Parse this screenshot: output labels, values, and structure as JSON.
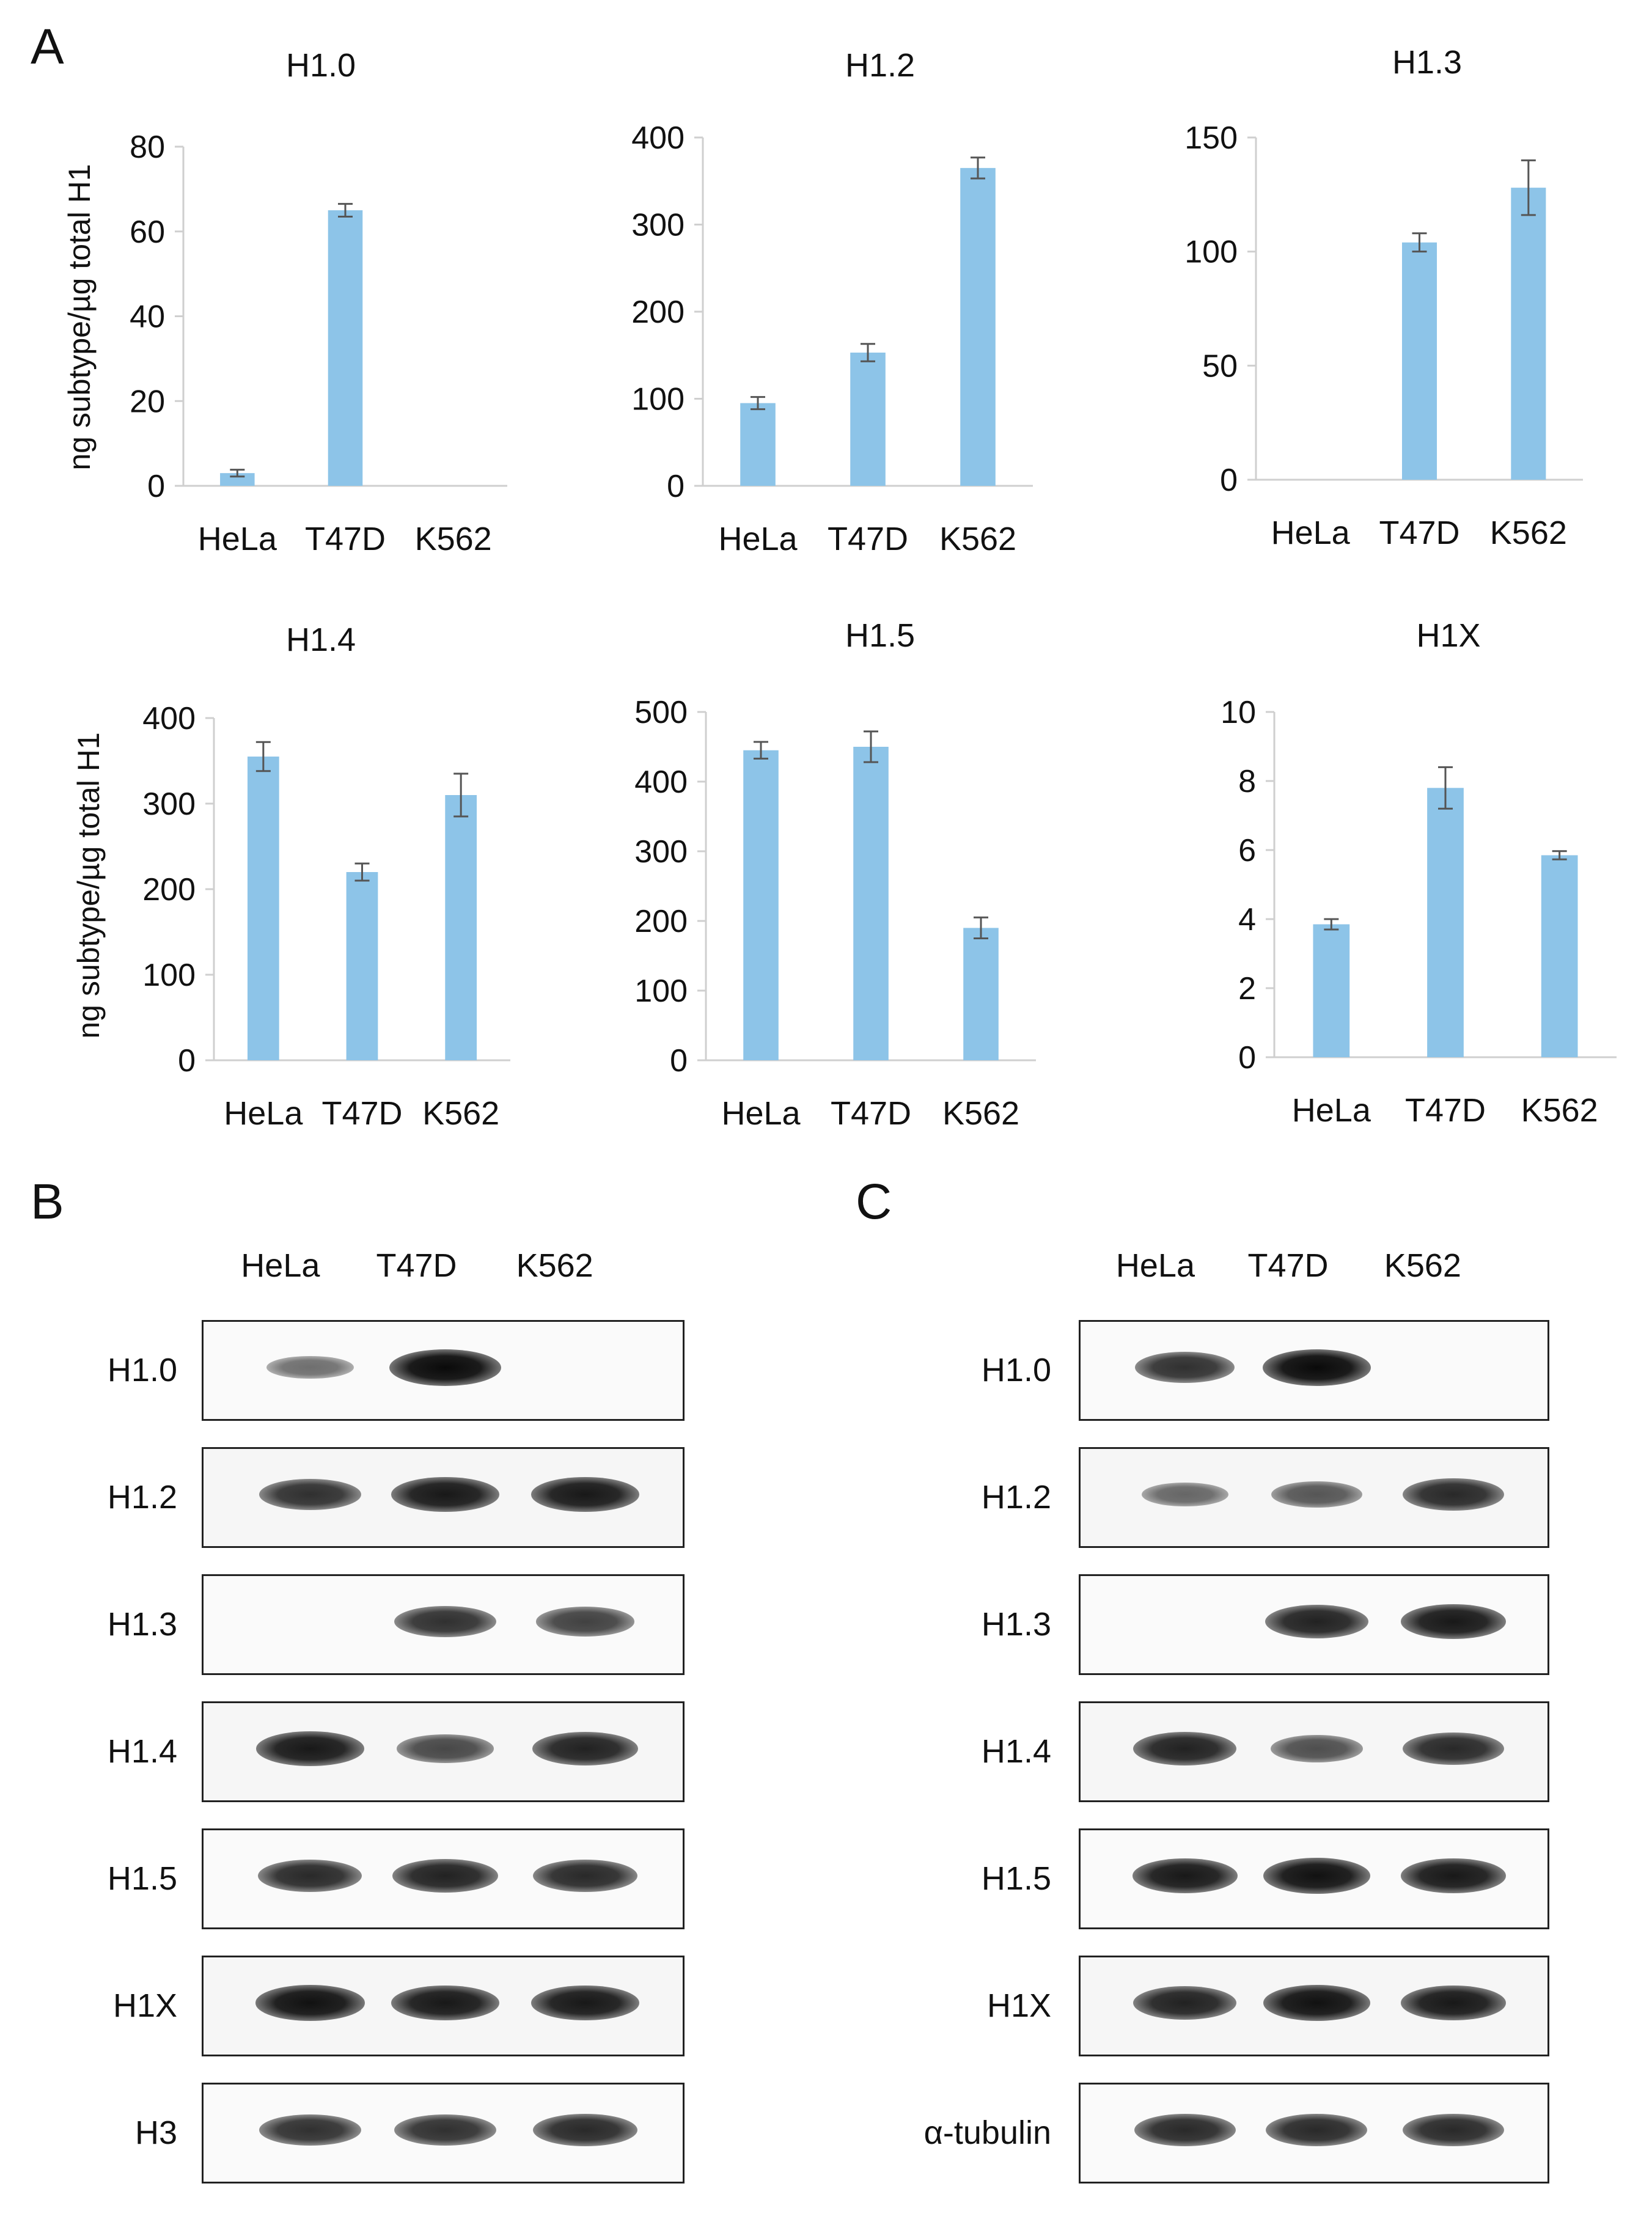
{
  "panels": {
    "a": "A",
    "b": "B",
    "c": "C"
  },
  "y_axis_label": "ng subtype/µg total H1",
  "chart_data": [
    {
      "type": "bar",
      "title": "H1.0",
      "categories": [
        "HeLa",
        "T47D",
        "K562"
      ],
      "values": [
        3,
        65,
        0
      ],
      "errors": [
        0.8,
        1.5,
        0
      ],
      "ylim": [
        0,
        80
      ],
      "yticks": [
        "0",
        "20",
        "40",
        "60",
        "80"
      ],
      "ylabel": "ng subtype/µg total H1",
      "color": "#8DC4E8"
    },
    {
      "type": "bar",
      "title": "H1.2",
      "categories": [
        "HeLa",
        "T47D",
        "K562"
      ],
      "values": [
        95,
        153,
        365
      ],
      "errors": [
        7,
        10,
        12
      ],
      "ylim": [
        0,
        400
      ],
      "yticks": [
        "0",
        "100",
        "200",
        "300",
        "400"
      ],
      "ylabel": "",
      "color": "#8DC4E8"
    },
    {
      "type": "bar",
      "title": "H1.3",
      "categories": [
        "HeLa",
        "T47D",
        "K562"
      ],
      "values": [
        0,
        104,
        128
      ],
      "errors": [
        0,
        4,
        12
      ],
      "ylim": [
        0,
        150
      ],
      "yticks": [
        "0",
        "50",
        "100",
        "150"
      ],
      "ylabel": "",
      "color": "#8DC4E8"
    },
    {
      "type": "bar",
      "title": "H1.4",
      "categories": [
        "HeLa",
        "T47D",
        "K562"
      ],
      "values": [
        355,
        220,
        310
      ],
      "errors": [
        17,
        10,
        25
      ],
      "ylim": [
        0,
        400
      ],
      "yticks": [
        "0",
        "100",
        "200",
        "300",
        "400"
      ],
      "ylabel": "ng subtype/µg total H1",
      "color": "#8DC4E8"
    },
    {
      "type": "bar",
      "title": "H1.5",
      "categories": [
        "HeLa",
        "T47D",
        "K562"
      ],
      "values": [
        445,
        450,
        190
      ],
      "errors": [
        12,
        22,
        15
      ],
      "ylim": [
        0,
        500
      ],
      "yticks": [
        "0",
        "100",
        "200",
        "300",
        "400",
        "500"
      ],
      "ylabel": "",
      "color": "#8DC4E8"
    },
    {
      "type": "bar",
      "title": "H1X",
      "categories": [
        "HeLa",
        "T47D",
        "K562"
      ],
      "values": [
        3.85,
        7.8,
        5.85
      ],
      "errors": [
        0.15,
        0.6,
        0.12
      ],
      "ylim": [
        0,
        10
      ],
      "yticks": [
        "0",
        "2",
        "4",
        "6",
        "8",
        "10"
      ],
      "ylabel": "",
      "color": "#8DC4E8"
    }
  ],
  "blots": [
    {
      "panel": "B",
      "lanes": [
        "HeLa",
        "T47D",
        "K562"
      ],
      "rows": [
        {
          "label": "H1.0",
          "intensity": [
            0.35,
            1.0,
            0
          ]
        },
        {
          "label": "H1.2",
          "intensity": [
            0.75,
            0.9,
            0.9
          ]
        },
        {
          "label": "H1.3",
          "intensity": [
            0,
            0.75,
            0.65
          ]
        },
        {
          "label": "H1.4",
          "intensity": [
            0.9,
            0.6,
            0.85
          ]
        },
        {
          "label": "H1.5",
          "intensity": [
            0.8,
            0.85,
            0.8
          ]
        },
        {
          "label": "H1X",
          "intensity": [
            0.95,
            0.9,
            0.9
          ]
        },
        {
          "label": "H3",
          "intensity": [
            0.75,
            0.75,
            0.8
          ]
        }
      ]
    },
    {
      "panel": "C",
      "lanes": [
        "HeLa",
        "T47D",
        "K562"
      ],
      "rows": [
        {
          "label": "H1.0",
          "intensity": [
            0.75,
            1.0,
            0
          ]
        },
        {
          "label": "H1.2",
          "intensity": [
            0.4,
            0.5,
            0.8
          ]
        },
        {
          "label": "H1.3",
          "intensity": [
            0,
            0.85,
            0.9
          ]
        },
        {
          "label": "H1.4",
          "intensity": [
            0.85,
            0.55,
            0.8
          ]
        },
        {
          "label": "H1.5",
          "intensity": [
            0.9,
            0.95,
            0.9
          ]
        },
        {
          "label": "H1X",
          "intensity": [
            0.85,
            0.95,
            0.9
          ]
        },
        {
          "label": "α-tubulin",
          "intensity": [
            0.8,
            0.8,
            0.8
          ]
        }
      ]
    }
  ]
}
